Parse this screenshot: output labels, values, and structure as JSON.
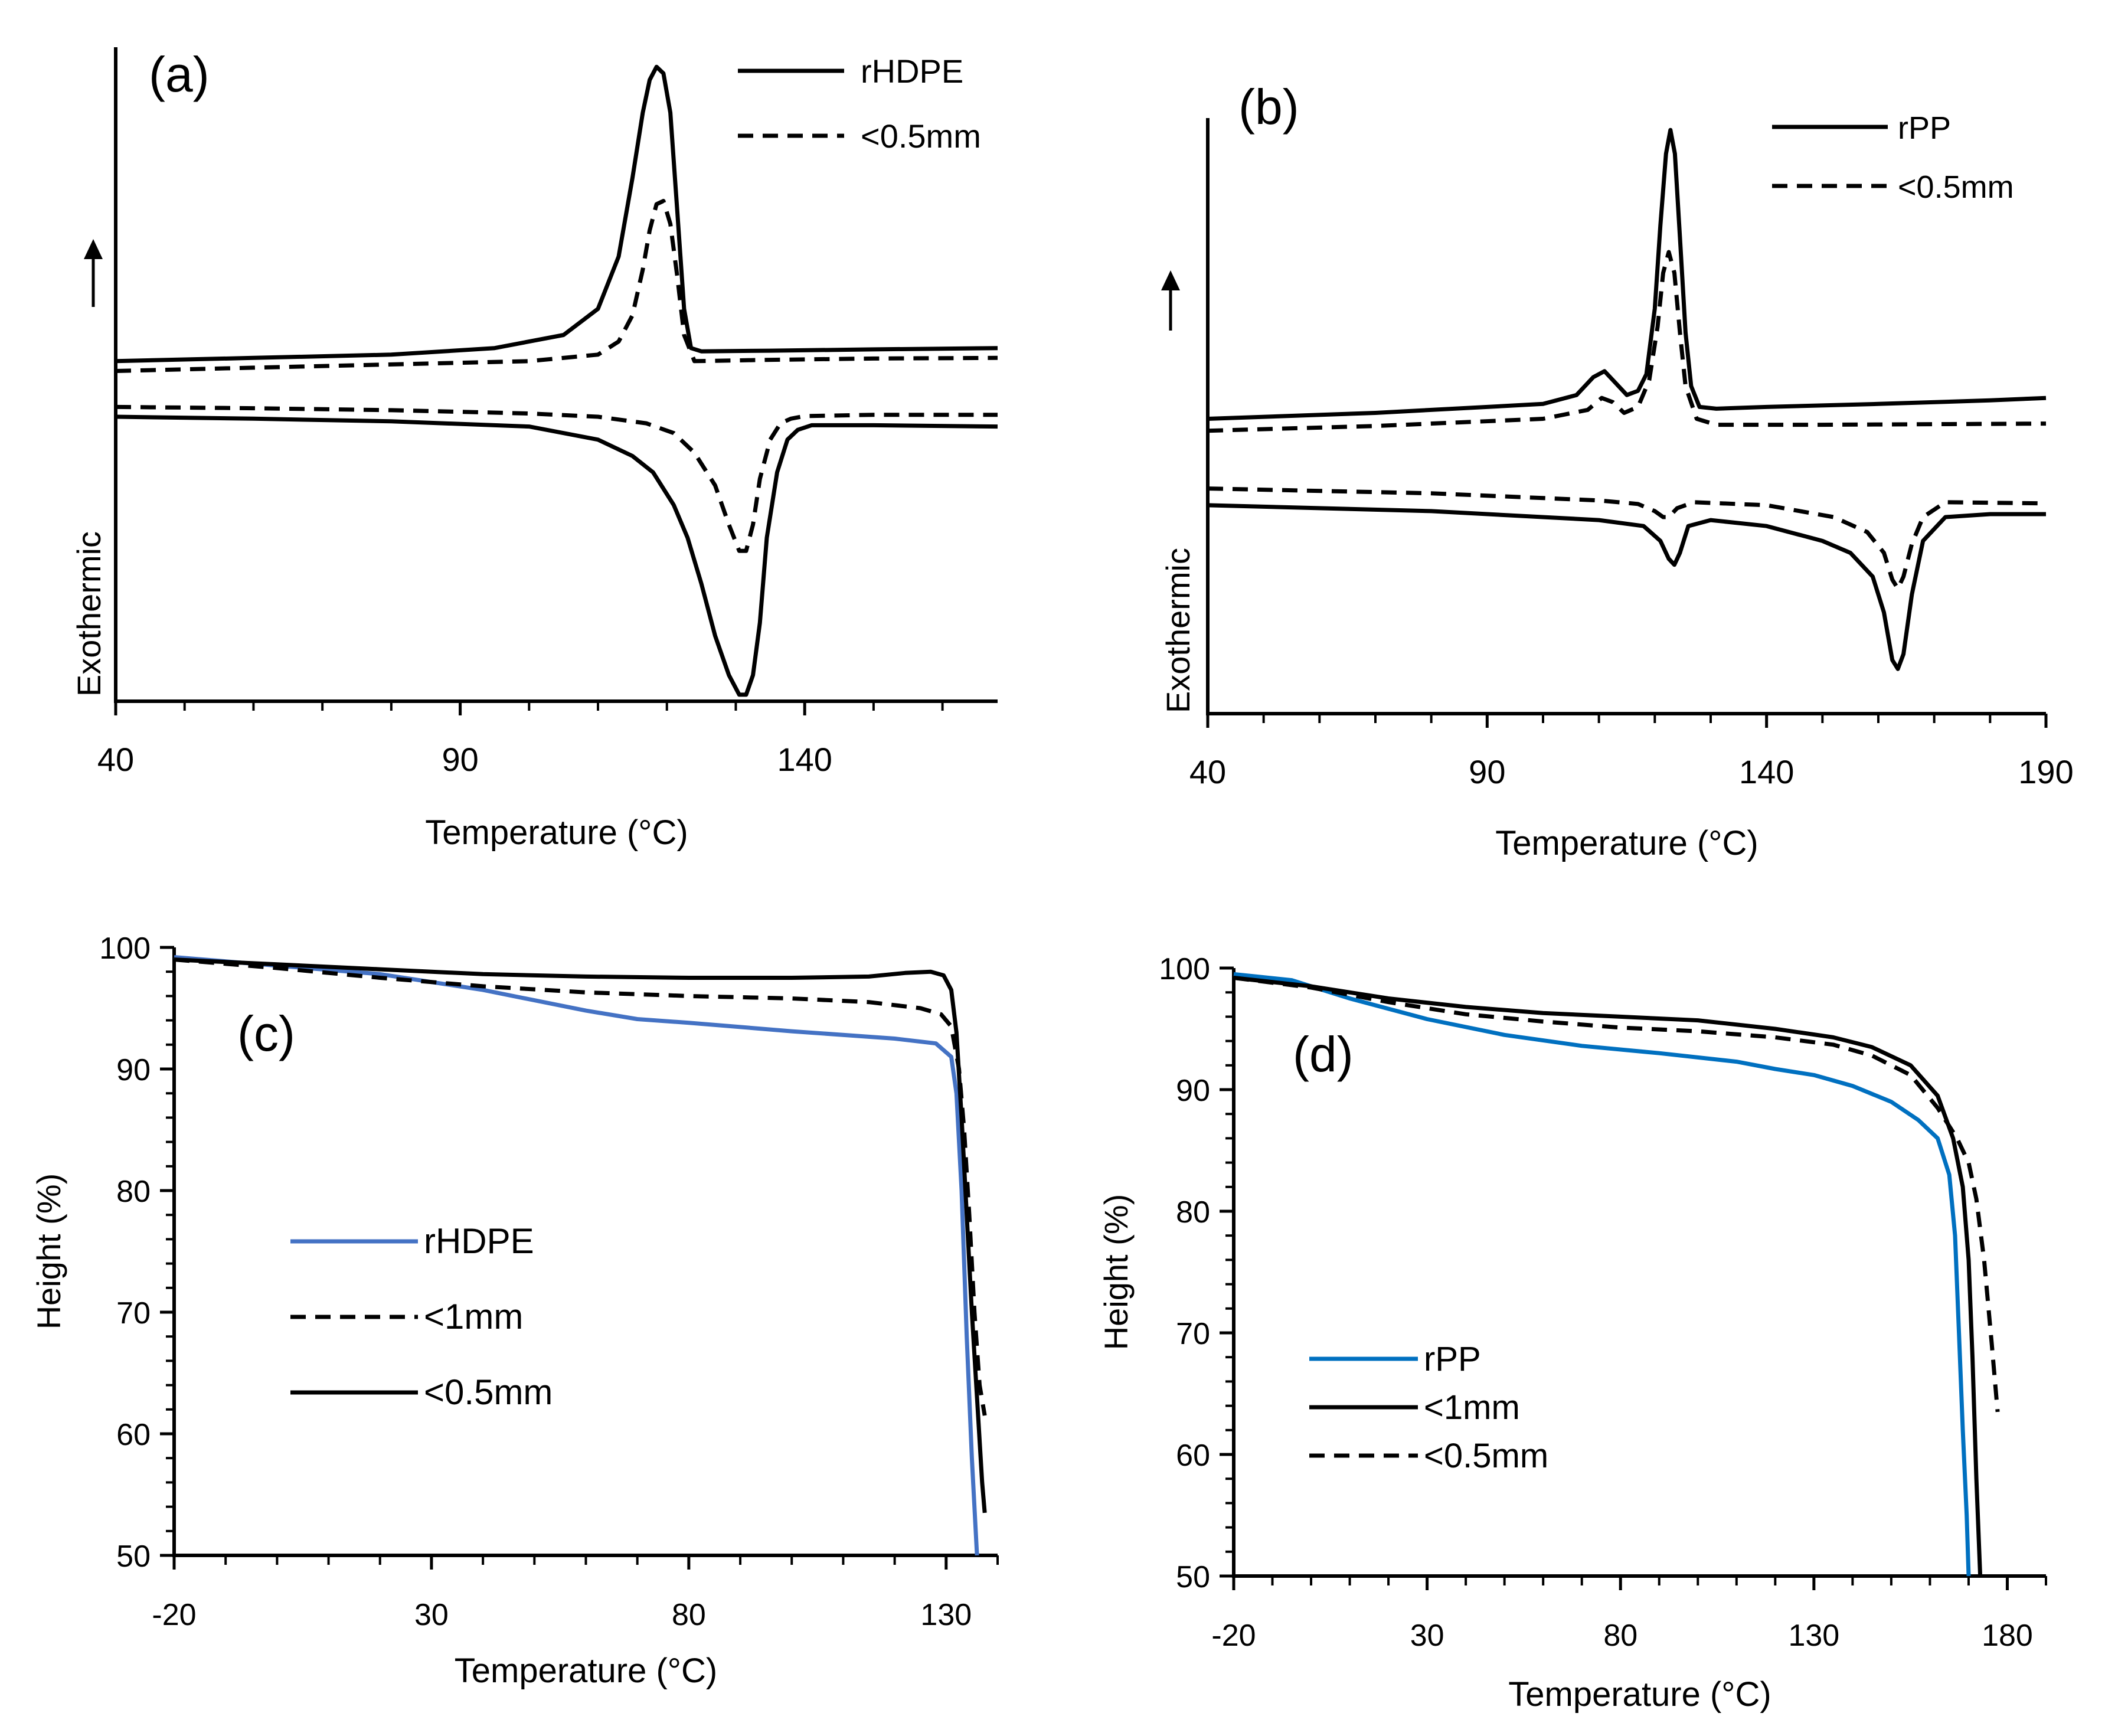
{
  "chart_data": [
    {
      "panel": "(a)",
      "type": "line",
      "title": "",
      "xlabel": "Temperature (°C)",
      "ylabel": "Exothermic",
      "ylabel_arrow": "up",
      "xlim": [
        40,
        168
      ],
      "ylim": [
        0,
        100
      ],
      "xticks": [
        40,
        90,
        140
      ],
      "xticks_minor_step": 10,
      "y_tick_labels": false,
      "legend_position": "top-right",
      "legend": [
        {
          "name": "rHDPE",
          "style": "solid"
        },
        {
          "name": "<0.5mm",
          "style": "dashed"
        }
      ],
      "series": [
        {
          "name": "rHDPE",
          "style": "solid",
          "color": "#000000",
          "x": [
            40,
            60,
            80,
            95,
            105,
            110,
            113,
            115,
            116.5,
            117.5,
            118.5,
            119.5,
            120.5,
            121.5,
            122.5,
            123.5,
            125,
            135,
            150,
            168
          ],
          "y": [
            52,
            52.5,
            53,
            54,
            56,
            60,
            68,
            80,
            90,
            95,
            97,
            96,
            90,
            75,
            60,
            54,
            53.5,
            53.6,
            53.8,
            54
          ]
        },
        {
          "name": "rHDPE",
          "style": "solid",
          "color": "#000000",
          "x": [
            40,
            60,
            80,
            100,
            110,
            115,
            118,
            121,
            123,
            125,
            127,
            129,
            130.5,
            131.5,
            132.5,
            133.5,
            134.5,
            136,
            137.5,
            139,
            141,
            150,
            168
          ],
          "y": [
            43.5,
            43.2,
            42.8,
            42,
            40,
            37.5,
            35,
            30,
            25,
            18,
            10,
            4,
            1,
            1,
            4,
            12,
            25,
            35,
            40,
            41.5,
            42.2,
            42.2,
            42
          ]
        },
        {
          "name": "<0.5mm",
          "style": "dashed",
          "color": "#000000",
          "x": [
            40,
            60,
            80,
            100,
            110,
            113,
            115,
            116.5,
            117.5,
            118.5,
            119.5,
            120.5,
            121.5,
            122.5,
            124,
            135,
            150,
            168
          ],
          "y": [
            50.5,
            51,
            51.5,
            52,
            53,
            55,
            59,
            66,
            72,
            76,
            76.5,
            73,
            65,
            56,
            52,
            52.2,
            52.4,
            52.5
          ]
        },
        {
          "name": "<0.5mm",
          "style": "dashed",
          "color": "#000000",
          "x": [
            40,
            60,
            80,
            100,
            110,
            117,
            121,
            124,
            127,
            129,
            130.5,
            131.5,
            132.5,
            133.5,
            135,
            136.5,
            138,
            140,
            150,
            168
          ],
          "y": [
            45,
            44.8,
            44.5,
            44,
            43.5,
            42.5,
            41,
            38,
            33,
            27,
            23,
            23,
            27,
            34,
            40,
            42.5,
            43.2,
            43.6,
            43.8,
            43.8
          ]
        }
      ]
    },
    {
      "panel": "(b)",
      "type": "line",
      "title": "",
      "xlabel": "Temperature (°C)",
      "ylabel": "Exothermic",
      "ylabel_arrow": "up",
      "xlim": [
        40,
        190
      ],
      "ylim": [
        0,
        100
      ],
      "xticks": [
        40,
        90,
        140,
        190
      ],
      "xticks_minor_step": 10,
      "y_tick_labels": false,
      "legend_position": "top-right",
      "legend": [
        {
          "name": "rPP",
          "style": "solid"
        },
        {
          "name": "<0.5mm",
          "style": "dashed"
        }
      ],
      "series": [
        {
          "name": "rPP",
          "style": "solid",
          "color": "#000000",
          "x": [
            40,
            70,
            100,
            106,
            109,
            111,
            113,
            115,
            117,
            118.5,
            120,
            121,
            122,
            122.8,
            123.6,
            124.5,
            125.5,
            126.5,
            128,
            131,
            140,
            160,
            180,
            190
          ],
          "y": [
            49.5,
            50.5,
            52,
            53.5,
            56.5,
            57.5,
            55.5,
            53.5,
            54.2,
            57,
            68,
            82,
            94,
            98,
            94,
            80,
            64,
            55,
            51.5,
            51.2,
            51.5,
            52,
            52.6,
            53
          ]
        },
        {
          "name": "rPP",
          "style": "solid",
          "color": "#000000",
          "x": [
            40,
            80,
            110,
            118,
            121,
            122.5,
            123.5,
            124.5,
            126,
            130,
            140,
            150,
            155,
            159,
            161,
            162.5,
            163.5,
            164.5,
            166,
            168,
            172,
            180,
            190
          ],
          "y": [
            35,
            34,
            32.5,
            31.5,
            29,
            26,
            25,
            27,
            31.5,
            32.5,
            31.5,
            29,
            27,
            23,
            17,
            9,
            7.5,
            10,
            20,
            29,
            33,
            33.5,
            33.5
          ]
        },
        {
          "name": "<0.5mm",
          "style": "dashed",
          "color": "#000000",
          "x": [
            40,
            70,
            100,
            108,
            110.5,
            112.5,
            114.5,
            117,
            119,
            120.5,
            121.5,
            122.5,
            123.5,
            124.5,
            125.5,
            127.5,
            131,
            150,
            190
          ],
          "y": [
            47.5,
            48.3,
            49.5,
            51,
            53,
            52.3,
            50.5,
            51.5,
            56,
            65,
            74,
            77.5,
            74,
            64,
            55,
            49.5,
            48.5,
            48.5,
            48.7
          ]
        },
        {
          "name": "<0.5mm",
          "style": "dashed",
          "color": "#000000",
          "x": [
            40,
            80,
            110,
            117,
            120,
            121.5,
            122.5,
            124,
            127,
            140,
            152,
            158,
            161,
            162.5,
            163.5,
            164.5,
            166,
            168,
            172,
            190
          ],
          "y": [
            37.8,
            37,
            35.8,
            35.2,
            34,
            33,
            33,
            34.5,
            35.5,
            35,
            33,
            30.5,
            27,
            22.5,
            21,
            23,
            28.5,
            33,
            35.5,
            35.3
          ]
        }
      ]
    },
    {
      "panel": "(c)",
      "type": "line",
      "title": "",
      "xlabel": "Temperature (°C)",
      "ylabel": "Height (%)",
      "xlim": [
        -20,
        140
      ],
      "ylim": [
        50,
        100
      ],
      "xticks": [
        -20,
        30,
        80,
        130
      ],
      "yticks": [
        50,
        60,
        70,
        80,
        90,
        100
      ],
      "legend_position": "center-left",
      "series": [
        {
          "name": "rHDPE",
          "style": "solid",
          "color": "#4472C4",
          "x": [
            -20,
            0,
            20,
            40,
            60,
            70,
            80,
            100,
            120,
            128,
            131,
            132,
            133,
            134,
            135,
            136
          ],
          "y": [
            99.2,
            98.5,
            97.8,
            96.5,
            94.8,
            94.1,
            93.8,
            93.1,
            92.5,
            92.1,
            91,
            88,
            80,
            68,
            58,
            50
          ]
        },
        {
          "name": "<1mm",
          "style": "dashed",
          "color": "#000000",
          "x": [
            -20,
            0,
            20,
            40,
            60,
            80,
            100,
            115,
            125,
            129,
            131,
            132.5,
            133.5,
            134.5,
            135.5,
            136.5,
            137.5
          ],
          "y": [
            99,
            98.3,
            97.5,
            96.8,
            96.3,
            96,
            95.8,
            95.5,
            95,
            94.5,
            93.5,
            90,
            85,
            78,
            70,
            64,
            61.5
          ]
        },
        {
          "name": "<0.5mm",
          "style": "solid",
          "color": "#000000",
          "x": [
            -20,
            0,
            20,
            40,
            60,
            80,
            100,
            115,
            122,
            127,
            129.5,
            131,
            132,
            133,
            134,
            135,
            136,
            137,
            137.5
          ],
          "y": [
            99,
            98.6,
            98.2,
            97.8,
            97.6,
            97.5,
            97.5,
            97.6,
            97.9,
            98,
            97.7,
            96.5,
            93,
            86,
            78,
            70,
            63,
            56,
            53.5
          ]
        }
      ]
    },
    {
      "panel": "(d)",
      "type": "line",
      "title": "",
      "xlabel": "Temperature (°C)",
      "ylabel": "Height (%)",
      "xlim": [
        -20,
        190
      ],
      "ylim": [
        50,
        100
      ],
      "xticks": [
        -20,
        30,
        80,
        130,
        180
      ],
      "yticks": [
        50,
        60,
        70,
        80,
        90,
        100
      ],
      "legend_position": "bottom-left",
      "series": [
        {
          "name": "rPP",
          "style": "solid",
          "color": "#0070C0",
          "x": [
            -20,
            -5,
            10,
            30,
            50,
            70,
            90,
            110,
            120,
            130,
            140,
            150,
            157,
            162,
            165,
            166.5,
            167.5,
            168.5,
            169.5,
            170
          ],
          "y": [
            99.5,
            99,
            97.5,
            95.8,
            94.5,
            93.6,
            93,
            92.3,
            91.7,
            91.2,
            90.3,
            89,
            87.5,
            86,
            83,
            78,
            70,
            62,
            55,
            50
          ]
        },
        {
          "name": "<1mm",
          "style": "solid",
          "color": "#000000",
          "x": [
            -20,
            0,
            20,
            40,
            60,
            80,
            100,
            120,
            135,
            145,
            155,
            162,
            166,
            168.5,
            170,
            171,
            172,
            173
          ],
          "y": [
            99.2,
            98.5,
            97.5,
            96.8,
            96.3,
            96,
            95.7,
            95,
            94.3,
            93.5,
            92,
            89.5,
            86,
            82,
            76,
            68,
            58,
            50
          ]
        },
        {
          "name": "<0.5mm",
          "style": "dashed",
          "color": "#000000",
          "x": [
            -20,
            0,
            20,
            40,
            60,
            80,
            100,
            120,
            135,
            145,
            155,
            162,
            167,
            170,
            172,
            174,
            176,
            177.5
          ],
          "y": [
            99.2,
            98.4,
            97.2,
            96.2,
            95.6,
            95.1,
            94.8,
            94.3,
            93.7,
            92.8,
            91.2,
            88.5,
            86,
            84,
            81,
            76,
            69,
            63.5
          ]
        }
      ]
    }
  ]
}
